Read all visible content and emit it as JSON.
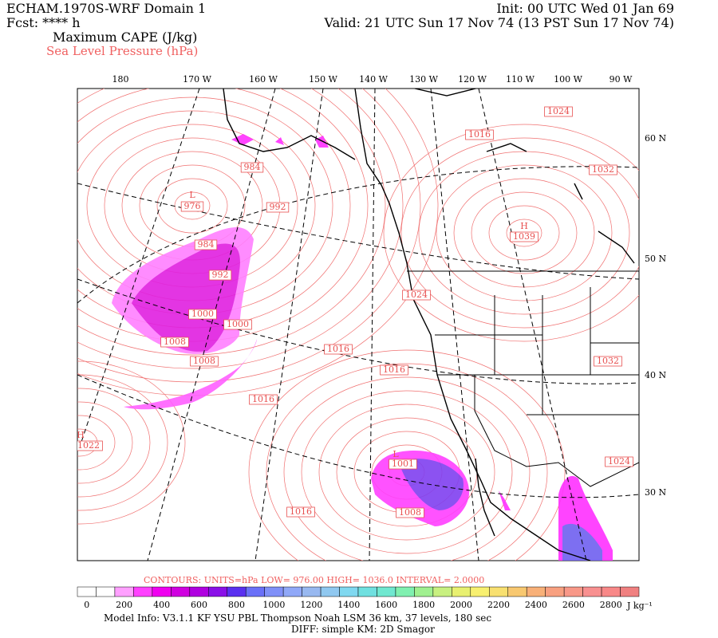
{
  "header": {
    "model": "ECHAM.1970S-WRF Domain 1",
    "forecast": "Fcst: **** h",
    "field": "Maximum CAPE (J/kg)",
    "contour_field": "Sea Level Pressure (hPa)",
    "init": "Init: 00 UTC Wed 01 Jan 69",
    "valid": "Valid: 21 UTC Sun 17 Nov 74 (13 PST Sun 17 Nov 74)"
  },
  "longitude_labels": [
    "180",
    "170 W",
    "160 W",
    "150 W",
    "140 W",
    "130 W",
    "120 W",
    "110 W",
    "100 W",
    "90 W"
  ],
  "latitude_labels": [
    "60 N",
    "50 N",
    "40 N",
    "30 N"
  ],
  "pressure_labels": [
    "1024",
    "1016",
    "1032",
    "984",
    "L",
    "976",
    "992",
    "H",
    "1039",
    "984",
    "992",
    "1024",
    "1000",
    "1000",
    "1008",
    "1016",
    "1008",
    "1016",
    "1032",
    "1016",
    "H",
    "1022",
    "L",
    "1001",
    "1024",
    "1008",
    "1016"
  ],
  "contour_info": "CONTOURS:  UNITS=hPa  LOW=  976.00      HIGH=  1036.0      INTERVAL=   2.0000",
  "colorbar": {
    "colors": [
      "#ffffff",
      "#ffffff",
      "#ffa0ff",
      "#ff40ff",
      "#f000f0",
      "#d000e0",
      "#b000e0",
      "#8a10e8",
      "#5a30f0",
      "#6a70f8",
      "#8090f8",
      "#90a8f8",
      "#98b8f0",
      "#90c8f0",
      "#80d8f0",
      "#70e0e0",
      "#70e8d0",
      "#80f0b0",
      "#a0f090",
      "#c8f080",
      "#e8f070",
      "#f8f070",
      "#f8e070",
      "#f8c870",
      "#f8b078",
      "#f8a080",
      "#f89888",
      "#f89090",
      "#f88888",
      "#f08080"
    ],
    "tick_labels": [
      "0",
      "200",
      "400",
      "600",
      "800",
      "1000",
      "1200",
      "1400",
      "1600",
      "1800",
      "2000",
      "2200",
      "2400",
      "2600",
      "2800"
    ],
    "unit": "J kg⁻¹"
  },
  "footer": {
    "line1": "Model Info: V3.1.1    KF        YSU PBL   Thompson      Noah LSM   36 km,     37 levels,   180 sec",
    "line2": "DIFF: simple KM: 2D Smagor"
  }
}
